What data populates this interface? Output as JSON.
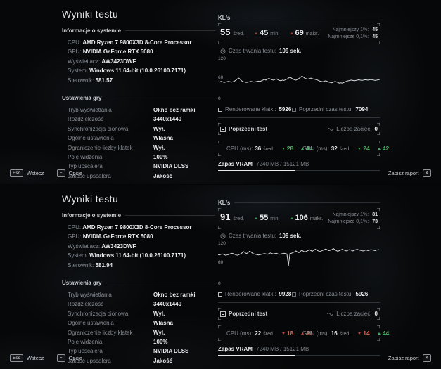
{
  "colors": {
    "green": "#3fae5f",
    "red": "#b2473c",
    "line": "#d6dadd",
    "bg": "#060708"
  },
  "panels": [
    {
      "title": "Wyniki testu",
      "system": {
        "heading": "Informacje o systemie",
        "rows": [
          {
            "label": "CPU:",
            "value": "AMD Ryzen 7 9800X3D 8-Core Processor"
          },
          {
            "label": "GPU:",
            "value": "NVIDIA GeForce RTX 5080"
          },
          {
            "label": "Wyświetlacz:",
            "value": "AW3423DWF"
          },
          {
            "label": "System:",
            "value": "Windows 11  64-bit (10.0.26100.7171)"
          },
          {
            "label": "Sterownik:",
            "value": "581.57"
          }
        ]
      },
      "settings": {
        "heading": "Ustawienia gry",
        "rows": [
          {
            "label": "Tryb wyświetlania",
            "value": "Okno bez ramki"
          },
          {
            "label": "Rozdzielczość",
            "value": "3440x1440"
          },
          {
            "label": "Synchronizacja pionowa",
            "value": "Wył."
          },
          {
            "label": "Ogólne ustawienia",
            "value": "Własna"
          },
          {
            "label": "Ograniczenie liczby klatek",
            "value": "Wył."
          },
          {
            "label": "Pole widzenia",
            "value": "100%"
          },
          {
            "label": "Typ upscalera",
            "value": "NVIDIA DLSS"
          },
          {
            "label": "Jakość upscalera",
            "value": "Jakość"
          }
        ]
      },
      "perf": {
        "heading": "KL/s",
        "avg": "55",
        "avg_label": "śred.",
        "min": {
          "value": "45",
          "label": "min.",
          "color": "red",
          "dir": "up"
        },
        "max": {
          "value": "69",
          "label": "maks.",
          "color": "red",
          "dir": "up"
        },
        "low1_label": "Najmniejszy 1%:",
        "low1": "45",
        "low01_label": "Najmniejsze 0,1%:",
        "low01": "45",
        "duration_label": "Czas trwania testu:",
        "duration": "109 sek.",
        "chart": {
          "type": "line",
          "ylim": [
            0,
            120
          ],
          "yticks": [
            "120",
            "60",
            "0"
          ],
          "points": [
            52,
            51,
            53,
            52,
            50,
            51,
            52,
            53,
            52,
            51,
            52,
            54,
            57,
            61,
            63,
            58,
            54,
            52,
            51,
            50,
            51,
            52,
            53,
            52,
            51,
            52,
            53,
            54,
            53,
            55,
            57,
            59,
            57,
            60,
            62,
            60,
            58,
            57,
            59,
            61,
            58,
            56,
            55,
            57,
            56,
            58,
            60,
            63,
            66,
            63,
            60,
            58,
            57,
            59,
            62,
            65,
            69,
            66,
            62,
            61,
            60,
            61,
            63,
            61,
            60,
            59,
            58,
            56,
            54,
            53,
            52,
            54,
            55,
            53,
            51,
            50,
            49,
            51,
            53,
            52,
            50,
            48,
            49,
            48,
            50,
            52,
            54,
            55,
            56,
            57,
            56,
            55,
            56,
            57,
            58,
            57,
            56,
            57,
            58,
            58,
            57,
            58,
            59,
            58,
            57,
            56,
            57,
            58,
            59
          ]
        },
        "frames_label": "Renderowane klatki:",
        "frames": "5926",
        "prev_label": "Poprzedni czas testu:",
        "prev": "7094",
        "prev_test_label": "Poprzedni test",
        "stutter_label": "Liczba zacięć:",
        "stutter": "0",
        "cpu": {
          "label": "CPU (ms):",
          "avg": "36",
          "avg_label": "śred.",
          "min": {
            "value": "28",
            "color": "green",
            "dir": "down"
          },
          "max": {
            "value": "44",
            "color": "green",
            "dir": "up"
          }
        },
        "gpu": {
          "label": "GPU (ms):",
          "avg": "32",
          "avg_label": "śred.",
          "min": {
            "value": "24",
            "color": "green",
            "dir": "down"
          },
          "max": {
            "value": "42",
            "color": "green",
            "dir": "up"
          }
        },
        "vram_label": "Zapas VRAM",
        "vram_text": "7240 MB / 15121 MB",
        "vram_pct": 47.9
      },
      "footer": {
        "back_key": "Esc",
        "back_label": "Wstecz",
        "options_key": "F",
        "options_label": "Opcje",
        "save_label": "Zapisz raport",
        "save_key": "X"
      }
    },
    {
      "title": "Wyniki testu",
      "system": {
        "heading": "Informacje o systemie",
        "rows": [
          {
            "label": "CPU:",
            "value": "AMD Ryzen 7 9800X3D 8-Core Processor"
          },
          {
            "label": "GPU:",
            "value": "NVIDIA GeForce RTX 5080"
          },
          {
            "label": "Wyświetlacz:",
            "value": "AW3423DWF"
          },
          {
            "label": "System:",
            "value": "Windows 11  64-bit (10.0.26100.7171)"
          },
          {
            "label": "Sterownik:",
            "value": "581.94"
          }
        ]
      },
      "settings": {
        "heading": "Ustawienia gry",
        "rows": [
          {
            "label": "Tryb wyświetlania",
            "value": "Okno bez ramki"
          },
          {
            "label": "Rozdzielczość",
            "value": "3440x1440"
          },
          {
            "label": "Synchronizacja pionowa",
            "value": "Wył."
          },
          {
            "label": "Ogólne ustawienia",
            "value": "Własna"
          },
          {
            "label": "Ograniczenie liczby klatek",
            "value": "Wył."
          },
          {
            "label": "Pole widzenia",
            "value": "100%"
          },
          {
            "label": "Typ upscalera",
            "value": "NVIDIA DLSS"
          },
          {
            "label": "Jakość upscalera",
            "value": "Jakość"
          }
        ]
      },
      "perf": {
        "heading": "KL/s",
        "avg": "91",
        "avg_label": "śred.",
        "min": {
          "value": "55",
          "label": "min.",
          "color": "green",
          "dir": "up"
        },
        "max": {
          "value": "106",
          "label": "maks.",
          "color": "green",
          "dir": "up"
        },
        "low1_label": "Najmniejszy 1%:",
        "low1": "81",
        "low01_label": "Najmniejsze 0,1%:",
        "low01": "73",
        "duration_label": "Czas trwania testu:",
        "duration": "109 sek.",
        "chart": {
          "type": "line",
          "ylim": [
            0,
            120
          ],
          "yticks": [
            "120",
            "60",
            "0"
          ],
          "points": [
            88,
            87,
            89,
            90,
            88,
            86,
            87,
            88,
            90,
            92,
            91,
            89,
            87,
            86,
            88,
            90,
            93,
            97,
            94,
            91,
            94,
            98,
            96,
            92,
            90,
            89,
            88,
            87,
            88,
            89,
            90,
            91,
            90,
            89,
            91,
            93,
            91,
            90,
            91,
            92,
            90,
            89,
            90,
            91,
            92,
            91,
            90,
            55,
            91,
            92,
            94,
            96,
            99,
            96,
            94,
            98,
            101,
            98,
            96,
            98,
            100,
            103,
            100,
            98,
            102,
            104,
            101,
            99,
            97,
            99,
            101,
            103,
            105,
            102,
            100,
            101,
            103,
            106,
            103,
            100,
            98,
            100,
            102,
            104,
            102,
            100,
            99,
            102,
            103,
            101,
            99,
            101,
            103,
            104,
            102,
            101,
            100,
            99,
            101,
            102,
            100,
            101,
            103,
            102,
            101,
            100,
            102,
            103,
            102
          ]
        },
        "frames_label": "Renderowane klatki:",
        "frames": "9928",
        "prev_label": "Poprzedni czas testu:",
        "prev": "5926",
        "prev_test_label": "Poprzedni test",
        "stutter_label": "Liczba zacięć:",
        "stutter": "0",
        "cpu": {
          "label": "CPU (ms):",
          "avg": "22",
          "avg_label": "śred.",
          "min": {
            "value": "18",
            "color": "red",
            "dir": "down"
          },
          "max": {
            "value": "36",
            "color": "red",
            "dir": "up"
          }
        },
        "gpu": {
          "label": "GPU (ms):",
          "avg": "16",
          "avg_label": "śred.",
          "min": {
            "value": "14",
            "color": "red",
            "dir": "down"
          },
          "max": {
            "value": "44",
            "color": "green",
            "dir": "up"
          }
        },
        "vram_label": "Zapas VRAM",
        "vram_text": "7240 MB / 15121 MB",
        "vram_pct": 47.9
      },
      "footer": {
        "back_key": "Esc",
        "back_label": "Wstecz",
        "options_key": "F",
        "options_label": "Opcje",
        "save_label": "Zapisz raport",
        "save_key": "X"
      }
    }
  ]
}
